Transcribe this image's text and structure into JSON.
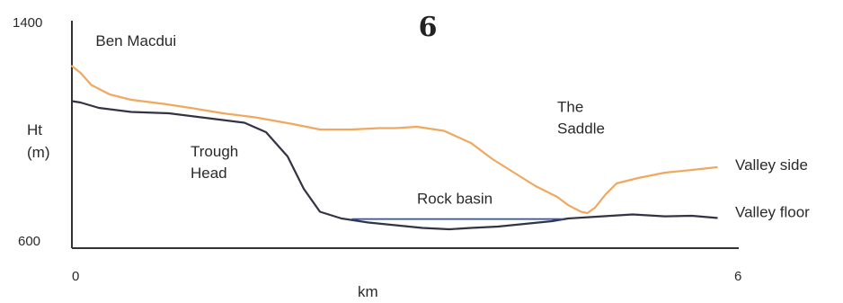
{
  "chart_data": {
    "type": "line",
    "title": "6",
    "ylabel_line1": "Ht",
    "ylabel_line2": "(m)",
    "xlabel": "km",
    "xlim": [
      0,
      6
    ],
    "ylim": [
      600,
      1400
    ],
    "xticks": [
      "0",
      "6"
    ],
    "yticks": [
      "1400",
      "600"
    ],
    "grid": false,
    "colors": {
      "valley_side": "#F0A860",
      "valley_floor": "#333344",
      "rock_basin": "#3050B0",
      "axes": "#333333"
    },
    "series": [
      {
        "name": "Valley side",
        "x": [
          0,
          0.08,
          0.18,
          0.35,
          0.55,
          0.85,
          1.1,
          1.4,
          1.7,
          2.05,
          2.3,
          2.6,
          2.85,
          3.0,
          3.2,
          3.45,
          3.7,
          3.9,
          4.1,
          4.3,
          4.5,
          4.6,
          4.72,
          4.78,
          4.85,
          4.95,
          5.05,
          5.25,
          5.5,
          5.75,
          5.98
        ],
        "y": [
          1255,
          1230,
          1185,
          1150,
          1130,
          1115,
          1100,
          1080,
          1065,
          1040,
          1020,
          1020,
          1025,
          1025,
          1030,
          1015,
          970,
          910,
          860,
          810,
          770,
          740,
          715,
          710,
          730,
          780,
          820,
          840,
          860,
          870,
          880
        ]
      },
      {
        "name": "Valley floor",
        "x": [
          0,
          0.08,
          0.25,
          0.55,
          0.9,
          1.3,
          1.6,
          1.8,
          2.0,
          2.15,
          2.3,
          2.5,
          2.75,
          3.0,
          3.25,
          3.5,
          3.7,
          3.95,
          4.2,
          4.45,
          4.6,
          4.8,
          5.0,
          5.2,
          5.5,
          5.75,
          5.98
        ],
        "y": [
          1125,
          1120,
          1100,
          1085,
          1080,
          1060,
          1045,
          1010,
          920,
          800,
          715,
          690,
          675,
          665,
          655,
          650,
          655,
          660,
          670,
          680,
          690,
          695,
          700,
          705,
          698,
          700,
          692
        ]
      },
      {
        "name": "Rock basin",
        "x": [
          2.6,
          4.55
        ],
        "y": [
          688,
          688
        ]
      }
    ],
    "annotations": [
      {
        "text": "Ben Macdui",
        "x": 0.22,
        "y": 1330
      },
      {
        "text": "Trough",
        "x": 1.1,
        "y": 920
      },
      {
        "text": "Head",
        "x": 1.1,
        "y": 840
      },
      {
        "text": "Rock basin",
        "x": 3.2,
        "y": 745
      },
      {
        "text": "The",
        "x": 4.5,
        "y": 1085
      },
      {
        "text": "Saddle",
        "x": 4.5,
        "y": 1005
      },
      {
        "text": "Valley side",
        "x": 6.15,
        "y": 870
      },
      {
        "text": "Valley floor",
        "x": 6.15,
        "y": 695
      }
    ]
  }
}
